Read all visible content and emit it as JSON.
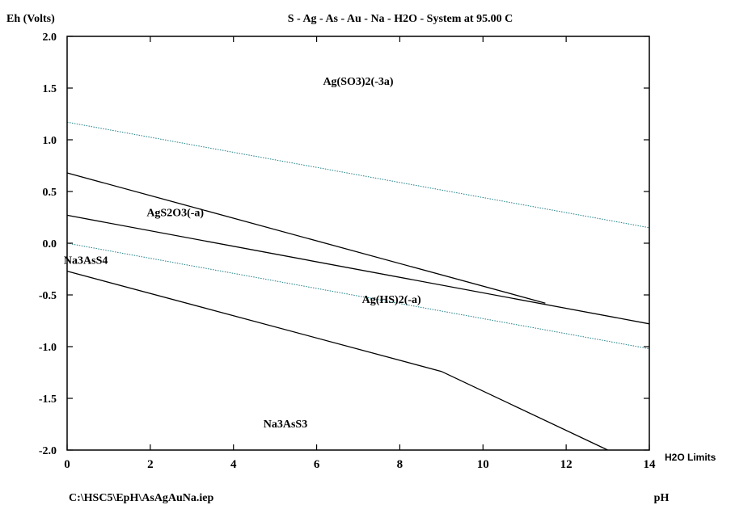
{
  "chart_data": {
    "type": "line",
    "title": "S - Ag - As - Au - Na - H2O - System at 95.00 C",
    "ylabel": "Eh (Volts)",
    "xlabel": "pH",
    "file_label": "C:\\HSC5\\EpH\\AsAgAuNa.iep",
    "limits_label": "H2O Limits",
    "xlim": [
      0,
      14
    ],
    "ylim": [
      -2.0,
      2.0
    ],
    "x_ticks": [
      0,
      2,
      4,
      6,
      8,
      10,
      12,
      14
    ],
    "x_tick_labels": [
      "0",
      "2",
      "4",
      "6",
      "8",
      "10",
      "12",
      "14"
    ],
    "y_ticks": [
      2.0,
      1.5,
      1.0,
      0.5,
      0.0,
      -0.5,
      -1.0,
      -1.5,
      -2.0
    ],
    "y_tick_labels": [
      "2.0",
      "1.5",
      "1.0",
      "0.5",
      "0.0",
      "-0.5",
      "-1.0",
      "-1.5",
      "-2.0"
    ],
    "grid": false,
    "colors": {
      "boundary": "#000000",
      "water_limit": "#1f7f86",
      "axis": "#000000"
    },
    "series": [
      {
        "style": "boundary",
        "x": [
          0,
          11.5
        ],
        "y": [
          0.68,
          -0.58
        ]
      },
      {
        "style": "boundary",
        "x": [
          0,
          14
        ],
        "y": [
          0.27,
          -0.78
        ]
      },
      {
        "style": "boundary",
        "x": [
          0,
          9.0,
          13.0
        ],
        "y": [
          -0.27,
          -1.24,
          -2.0
        ]
      },
      {
        "style": "water_limit",
        "x": [
          0,
          14
        ],
        "y": [
          1.17,
          0.15
        ]
      },
      {
        "style": "water_limit",
        "x": [
          0,
          14
        ],
        "y": [
          0.0,
          -1.02
        ]
      }
    ],
    "region_labels": [
      {
        "text": "Ag(SO3)2(-3a)",
        "x": 7.0,
        "y": 1.53
      },
      {
        "text": "AgS2O3(-a)",
        "x": 2.6,
        "y": 0.26
      },
      {
        "text": "Na3AsS4",
        "x": 0.45,
        "y": -0.2
      },
      {
        "text": "Ag(HS)2(-a)",
        "x": 7.8,
        "y": -0.58
      },
      {
        "text": "Na3AsS3",
        "x": 5.25,
        "y": -1.78
      }
    ]
  }
}
